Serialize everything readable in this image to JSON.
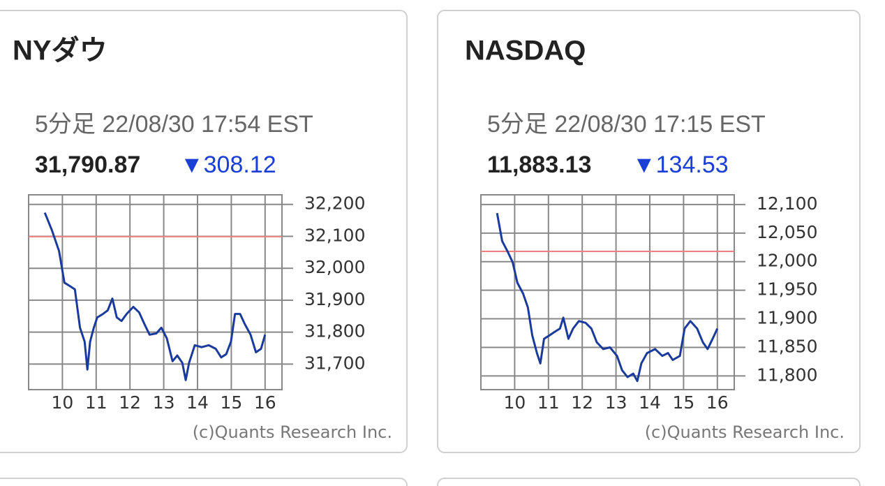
{
  "cards": [
    {
      "title": "NYダウ",
      "subtitle": "5分足 22/08/30 17:54 EST",
      "price": "31,790.87",
      "change": "▼308.12",
      "credit": "(c)Quants Research Inc.",
      "chart": {
        "type": "line",
        "color": "#1a3a9c",
        "reference": 32099,
        "reference_color": "#f08080",
        "grid": true,
        "xlim": [
          9,
          16.5
        ],
        "ylim": [
          31620,
          32230
        ],
        "xticks": [
          10,
          11,
          12,
          13,
          14,
          15,
          16
        ],
        "yticks": [
          {
            "value": 32200,
            "label": "32,200"
          },
          {
            "value": 32100,
            "label": "32,100"
          },
          {
            "value": 32000,
            "label": "32,000"
          },
          {
            "value": 31900,
            "label": "31,900"
          },
          {
            "value": 31800,
            "label": "31,800"
          },
          {
            "value": 31700,
            "label": "31,700"
          }
        ],
        "x": [
          9.48,
          9.69,
          9.9,
          10.06,
          10.21,
          10.37,
          10.52,
          10.66,
          10.74,
          10.82,
          10.93,
          11.03,
          11.2,
          11.34,
          11.48,
          11.61,
          11.75,
          11.9,
          12.1,
          12.27,
          12.43,
          12.58,
          12.78,
          12.93,
          13.09,
          13.26,
          13.4,
          13.55,
          13.65,
          13.75,
          13.92,
          14.12,
          14.33,
          14.54,
          14.7,
          14.85,
          14.99,
          15.11,
          15.26,
          15.4,
          15.57,
          15.73,
          15.88,
          16
        ],
        "values": [
          32174,
          32119,
          32054,
          31955,
          31945,
          31934,
          31814,
          31770,
          31683,
          31770,
          31814,
          31846,
          31857,
          31868,
          31905,
          31846,
          31835,
          31857,
          31879,
          31862,
          31825,
          31792,
          31796,
          31814,
          31781,
          31709,
          31727,
          31704,
          31650,
          31704,
          31759,
          31753,
          31759,
          31748,
          31721,
          31731,
          31770,
          31857,
          31857,
          31825,
          31792,
          31737,
          31748,
          31792
        ]
      }
    },
    {
      "title": "NASDAQ",
      "subtitle": "5分足 22/08/30 17:15 EST",
      "price": "11,883.13",
      "change": "▼134.53",
      "credit": "(c)Quants Research Inc.",
      "chart": {
        "type": "line",
        "color": "#1a3a9c",
        "reference": 12018,
        "reference_color": "#f08080",
        "grid": true,
        "xlim": [
          9,
          16.5
        ],
        "ylim": [
          11776,
          12117
        ],
        "xticks": [
          10,
          11,
          12,
          13,
          14,
          15,
          16
        ],
        "yticks": [
          {
            "value": 12100,
            "label": "12,100"
          },
          {
            "value": 12050,
            "label": "12,050"
          },
          {
            "value": 12000,
            "label": "12,000"
          },
          {
            "value": 11950,
            "label": "11,950"
          },
          {
            "value": 11900,
            "label": "11,900"
          },
          {
            "value": 11850,
            "label": "11,850"
          },
          {
            "value": 11800,
            "label": "11,800"
          }
        ],
        "x": [
          9.48,
          9.63,
          9.79,
          9.94,
          10.08,
          10.25,
          10.39,
          10.52,
          10.66,
          10.76,
          10.87,
          11.03,
          11.18,
          11.34,
          11.44,
          11.59,
          11.73,
          11.9,
          12.1,
          12.27,
          12.43,
          12.62,
          12.82,
          13.03,
          13.18,
          13.34,
          13.51,
          13.63,
          13.75,
          13.92,
          14.16,
          14.37,
          14.54,
          14.68,
          14.89,
          15.03,
          15.2,
          15.4,
          15.57,
          15.71,
          15.86,
          16
        ],
        "values": [
          12085,
          12036,
          12018,
          11999,
          11963,
          11944,
          11920,
          11871,
          11840,
          11822,
          11865,
          11871,
          11877,
          11883,
          11902,
          11865,
          11883,
          11896,
          11893,
          11883,
          11859,
          11847,
          11850,
          11835,
          11810,
          11798,
          11804,
          11791,
          11822,
          11840,
          11847,
          11835,
          11840,
          11828,
          11835,
          11883,
          11896,
          11883,
          11859,
          11847,
          11865,
          11883
        ]
      }
    }
  ]
}
